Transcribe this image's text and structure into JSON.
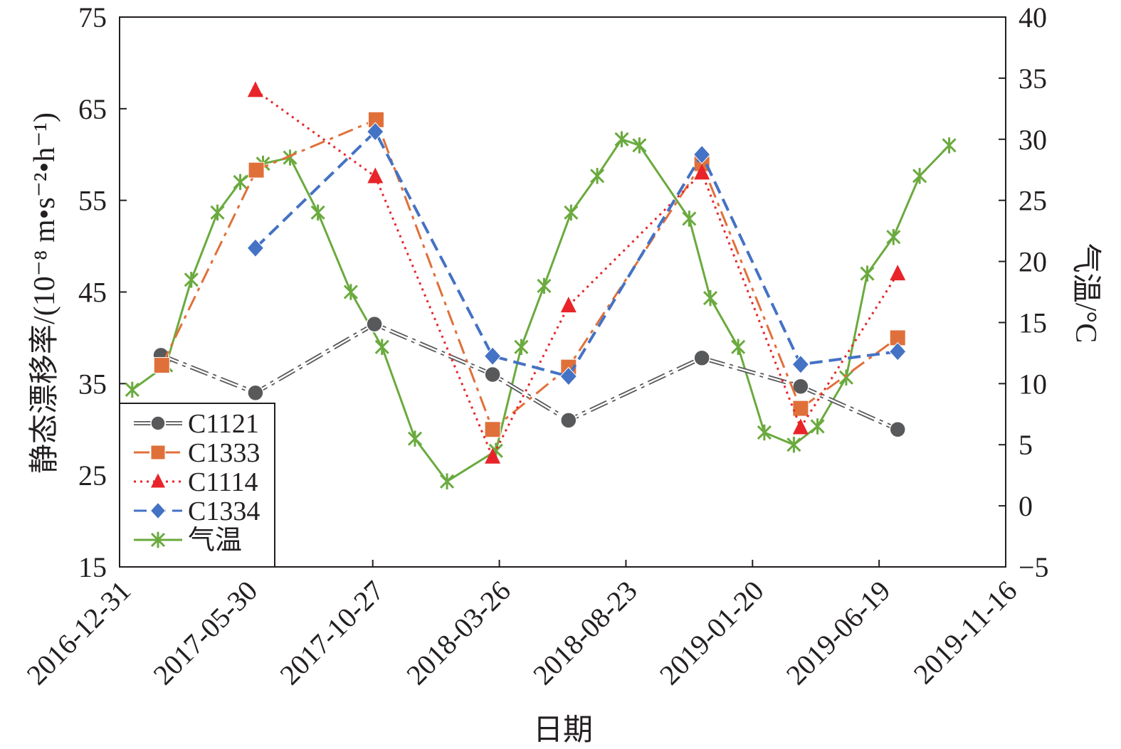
{
  "chart_data": {
    "type": "line",
    "xlabel": "日期",
    "ylabel": "静态漂移率/(10⁻⁸ m•s⁻²•h⁻¹)",
    "y2label": "气温/°C",
    "xlim": [
      "2016-12-31",
      "2019-11-16"
    ],
    "ylim": [
      15,
      75
    ],
    "y2lim": [
      -5,
      40
    ],
    "x_ticks": [
      "2016-12-31",
      "2017-05-30",
      "2017-10-27",
      "2018-03-26",
      "2018-08-23",
      "2019-01-20",
      "2019-06-19",
      "2019-11-16"
    ],
    "y_ticks": [
      "15",
      "25",
      "35",
      "45",
      "55",
      "65",
      "75"
    ],
    "y2_ticks": [
      "−5",
      "0",
      "5",
      "10",
      "15",
      "20",
      "25",
      "30",
      "35",
      "40"
    ],
    "grid": false,
    "legend_position": "bottom-left",
    "series": [
      {
        "name": "C1121",
        "axis": "left",
        "color": "#58595b",
        "marker": "circle",
        "line": "dash-dot-double",
        "points": [
          {
            "x": "2017-02-18",
            "y": 38.1
          },
          {
            "x": "2017-06-10",
            "y": 34.0
          },
          {
            "x": "2017-10-29",
            "y": 41.5
          },
          {
            "x": "2018-03-18",
            "y": 36.0
          },
          {
            "x": "2018-06-16",
            "y": 31.0
          },
          {
            "x": "2018-11-21",
            "y": 37.8
          },
          {
            "x": "2019-03-18",
            "y": 34.7
          },
          {
            "x": "2019-07-11",
            "y": 30.0
          }
        ]
      },
      {
        "name": "C1333",
        "axis": "left",
        "color": "#e0703a",
        "marker": "square",
        "line": "dash-dot",
        "points": [
          {
            "x": "2017-02-19",
            "y": 37.0
          },
          {
            "x": "2017-06-11",
            "y": 58.3
          },
          {
            "x": "2017-10-31",
            "y": 63.8
          },
          {
            "x": "2018-03-18",
            "y": 30.0
          },
          {
            "x": "2018-06-16",
            "y": 36.8
          },
          {
            "x": "2018-11-21",
            "y": 59.0
          },
          {
            "x": "2019-03-18",
            "y": 32.3
          },
          {
            "x": "2019-07-11",
            "y": 40.0
          }
        ]
      },
      {
        "name": "C1114",
        "axis": "left",
        "color": "#e8242a",
        "marker": "triangle",
        "line": "dotted",
        "points": [
          {
            "x": "2017-06-10",
            "y": 67.0
          },
          {
            "x": "2017-10-30",
            "y": 57.6
          },
          {
            "x": "2018-03-18",
            "y": 27.0
          },
          {
            "x": "2018-06-16",
            "y": 43.5
          },
          {
            "x": "2018-11-21",
            "y": 58.0
          },
          {
            "x": "2019-03-18",
            "y": 30.2
          },
          {
            "x": "2019-07-11",
            "y": 47.0
          }
        ]
      },
      {
        "name": "C1334",
        "axis": "left",
        "color": "#4472c4",
        "marker": "diamond",
        "line": "dashed",
        "points": [
          {
            "x": "2017-06-10",
            "y": 49.8
          },
          {
            "x": "2017-10-30",
            "y": 62.5
          },
          {
            "x": "2018-03-18",
            "y": 38.0
          },
          {
            "x": "2018-06-16",
            "y": 35.8
          },
          {
            "x": "2018-11-21",
            "y": 60.0
          },
          {
            "x": "2019-03-18",
            "y": 37.1
          },
          {
            "x": "2019-07-11",
            "y": 38.5
          }
        ]
      },
      {
        "name": "气温",
        "axis": "right",
        "color": "#6aaa3e",
        "marker": "asterisk",
        "line": "solid",
        "points": [
          {
            "x": "2017-01-15",
            "y": 9.5
          },
          {
            "x": "2017-02-24",
            "y": 11.5
          },
          {
            "x": "2017-03-26",
            "y": 18.5
          },
          {
            "x": "2017-04-26",
            "y": 24.0
          },
          {
            "x": "2017-05-23",
            "y": 26.5
          },
          {
            "x": "2017-06-19",
            "y": 28.0
          },
          {
            "x": "2017-07-21",
            "y": 28.5
          },
          {
            "x": "2017-08-23",
            "y": 24.0
          },
          {
            "x": "2017-10-01",
            "y": 17.5
          },
          {
            "x": "2017-11-07",
            "y": 13.0
          },
          {
            "x": "2017-12-16",
            "y": 5.5
          },
          {
            "x": "2018-01-23",
            "y": 2.0
          },
          {
            "x": "2018-03-22",
            "y": 4.5
          },
          {
            "x": "2018-04-21",
            "y": 13.0
          },
          {
            "x": "2018-05-18",
            "y": 18.0
          },
          {
            "x": "2018-06-19",
            "y": 24.0
          },
          {
            "x": "2018-07-20",
            "y": 27.0
          },
          {
            "x": "2018-08-18",
            "y": 30.0
          },
          {
            "x": "2018-09-08",
            "y": 29.5
          },
          {
            "x": "2018-11-06",
            "y": 23.5
          },
          {
            "x": "2018-12-01",
            "y": 17.0
          },
          {
            "x": "2019-01-03",
            "y": 13.0
          },
          {
            "x": "2019-02-03",
            "y": 6.0
          },
          {
            "x": "2019-03-10",
            "y": 5.0
          },
          {
            "x": "2019-04-07",
            "y": 6.5
          },
          {
            "x": "2019-05-11",
            "y": 10.5
          },
          {
            "x": "2019-06-05",
            "y": 19.0
          },
          {
            "x": "2019-07-06",
            "y": 22.0
          },
          {
            "x": "2019-08-06",
            "y": 27.0
          },
          {
            "x": "2019-09-10",
            "y": 29.5
          }
        ]
      }
    ]
  }
}
